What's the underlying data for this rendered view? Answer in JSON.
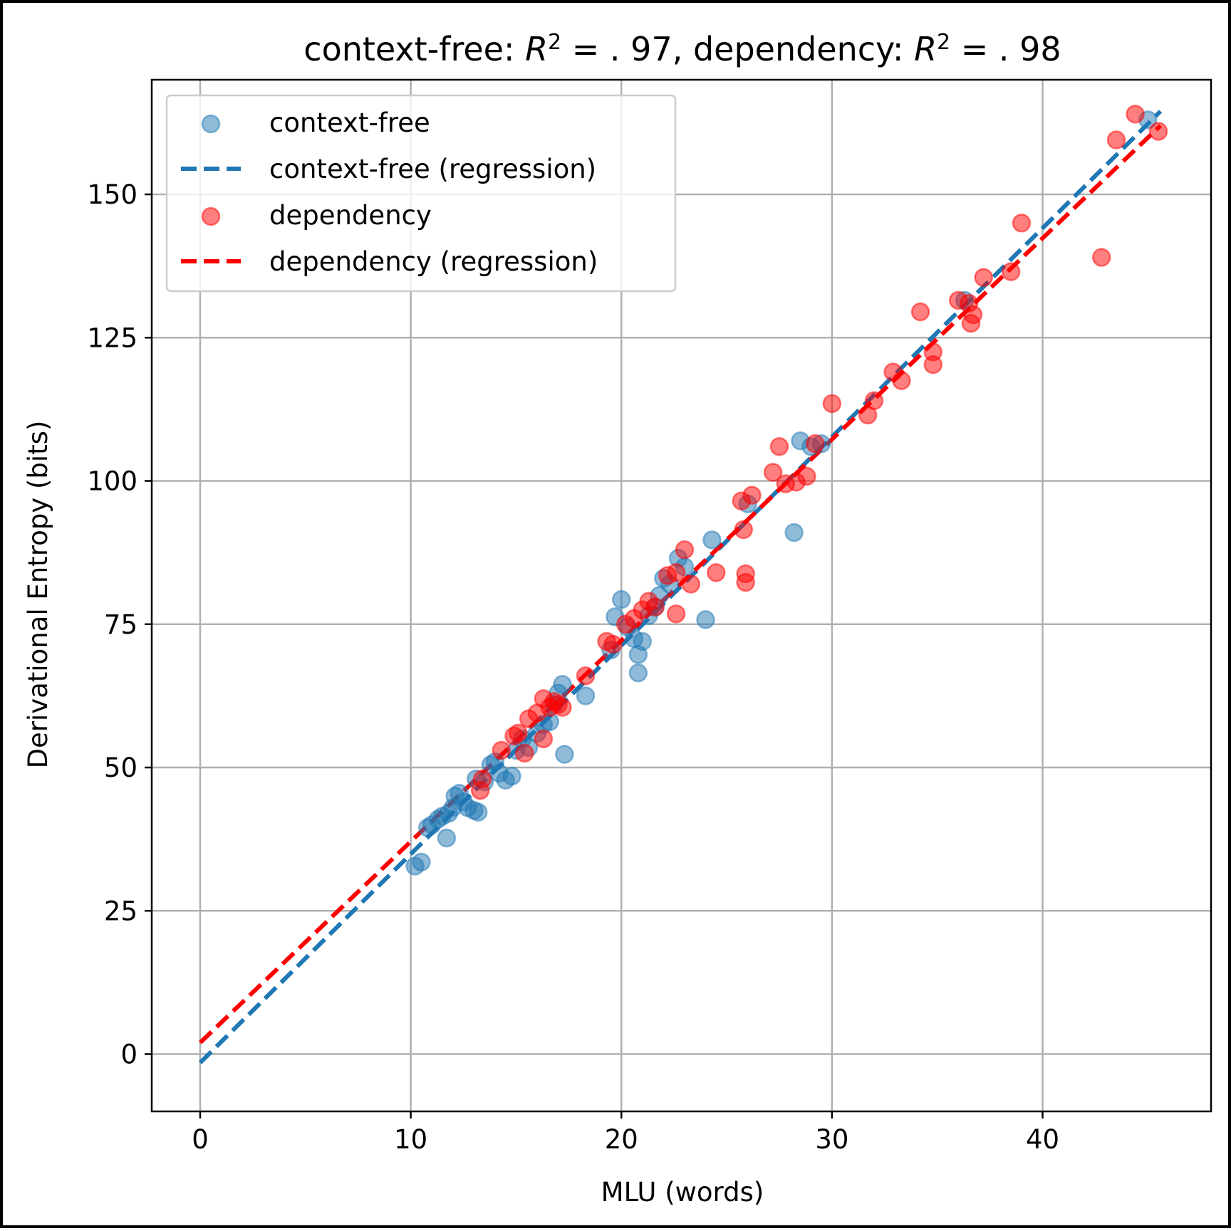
{
  "colors": {
    "context_free": "#1f77b4",
    "dependency": "#ff0000",
    "grid": "#b0b0b0",
    "frame": "#000000"
  },
  "chart_data": {
    "type": "scatter",
    "title": "context-free: R² = .97, dependency: R² = .98",
    "title_parts": {
      "cf_prefix": "context-free: ",
      "r": "R",
      "sup": "2",
      "cf_value": " = . 97, ",
      "dep_prefix": "dependency: ",
      "dep_value": " = . 98"
    },
    "xlabel": "MLU (words)",
    "ylabel": "Derivational Entropy (bits)",
    "xlim": [
      -2.3,
      48
    ],
    "ylim": [
      -10,
      170
    ],
    "xticks": [
      0,
      10,
      20,
      30,
      40
    ],
    "yticks": [
      0,
      25,
      50,
      75,
      100,
      125,
      150
    ],
    "grid": true,
    "legend": {
      "placement": "top-left",
      "entries": [
        {
          "label": "context-free",
          "kind": "marker",
          "series": "context_free"
        },
        {
          "label": "context-free (regression)",
          "kind": "dashed-line",
          "series": "context_free"
        },
        {
          "label": "dependency",
          "kind": "marker",
          "series": "dependency"
        },
        {
          "label": "dependency (regression)",
          "kind": "dashed-line",
          "series": "dependency"
        }
      ]
    },
    "series": [
      {
        "name": "context-free",
        "key": "context_free",
        "points": [
          [
            10.2,
            32.8
          ],
          [
            10.5,
            33.5
          ],
          [
            10.8,
            39.5
          ],
          [
            11.0,
            40.0
          ],
          [
            11.3,
            41.0
          ],
          [
            11.5,
            41.5
          ],
          [
            11.7,
            37.7
          ],
          [
            11.8,
            42.0
          ],
          [
            12.0,
            43.0
          ],
          [
            12.1,
            45.0
          ],
          [
            12.3,
            45.5
          ],
          [
            12.5,
            44.0
          ],
          [
            12.7,
            43.0
          ],
          [
            13.0,
            42.5
          ],
          [
            13.2,
            42.2
          ],
          [
            13.1,
            48.0
          ],
          [
            13.5,
            47.5
          ],
          [
            13.8,
            50.5
          ],
          [
            14.0,
            51.0
          ],
          [
            14.2,
            49.0
          ],
          [
            14.5,
            47.8
          ],
          [
            14.8,
            48.5
          ],
          [
            15.0,
            53.0
          ],
          [
            15.3,
            55.0
          ],
          [
            15.6,
            53.5
          ],
          [
            16.0,
            56.0
          ],
          [
            16.3,
            57.5
          ],
          [
            16.6,
            58.0
          ],
          [
            16.8,
            61.0
          ],
          [
            17.0,
            63.0
          ],
          [
            17.2,
            64.5
          ],
          [
            17.3,
            52.3
          ],
          [
            18.3,
            62.5
          ],
          [
            19.5,
            70.5
          ],
          [
            19.7,
            76.3
          ],
          [
            20.0,
            79.3
          ],
          [
            20.3,
            74.5
          ],
          [
            20.6,
            72.5
          ],
          [
            20.8,
            69.7
          ],
          [
            20.8,
            66.5
          ],
          [
            21.0,
            72.0
          ],
          [
            21.3,
            76.5
          ],
          [
            21.6,
            78.0
          ],
          [
            21.8,
            80.0
          ],
          [
            22.0,
            83.0
          ],
          [
            22.3,
            82.0
          ],
          [
            22.7,
            86.5
          ],
          [
            23.0,
            85.0
          ],
          [
            24.0,
            75.8
          ],
          [
            24.3,
            89.7
          ],
          [
            26.0,
            96.0
          ],
          [
            28.2,
            91.0
          ],
          [
            28.5,
            107.0
          ],
          [
            29.0,
            106.0
          ],
          [
            29.5,
            106.5
          ],
          [
            36.3,
            131.5
          ],
          [
            45.0,
            163.0
          ]
        ]
      },
      {
        "name": "dependency",
        "key": "dependency",
        "points": [
          [
            13.3,
            46.0
          ],
          [
            13.4,
            48.0
          ],
          [
            14.3,
            53.0
          ],
          [
            14.9,
            55.5
          ],
          [
            15.1,
            56.0
          ],
          [
            15.4,
            52.5
          ],
          [
            15.6,
            58.5
          ],
          [
            16.0,
            59.5
          ],
          [
            16.3,
            55.0
          ],
          [
            16.3,
            62.0
          ],
          [
            16.6,
            60.5
          ],
          [
            16.8,
            61.5
          ],
          [
            17.0,
            61.0
          ],
          [
            17.2,
            60.5
          ],
          [
            18.3,
            66.0
          ],
          [
            19.3,
            72.0
          ],
          [
            19.6,
            71.5
          ],
          [
            20.2,
            75.0
          ],
          [
            20.6,
            76.0
          ],
          [
            21.0,
            77.5
          ],
          [
            21.3,
            79.0
          ],
          [
            21.6,
            78.0
          ],
          [
            22.2,
            83.5
          ],
          [
            22.6,
            84.0
          ],
          [
            22.6,
            76.8
          ],
          [
            23.0,
            88.0
          ],
          [
            23.3,
            82.0
          ],
          [
            24.5,
            84.0
          ],
          [
            25.7,
            96.5
          ],
          [
            25.8,
            91.5
          ],
          [
            25.9,
            83.8
          ],
          [
            25.9,
            82.3
          ],
          [
            26.2,
            97.5
          ],
          [
            27.2,
            101.5
          ],
          [
            27.5,
            106.0
          ],
          [
            27.8,
            99.5
          ],
          [
            28.3,
            99.8
          ],
          [
            28.8,
            100.8
          ],
          [
            29.2,
            106.5
          ],
          [
            30.0,
            113.5
          ],
          [
            31.7,
            111.5
          ],
          [
            32.0,
            114.0
          ],
          [
            32.9,
            119.0
          ],
          [
            33.3,
            117.5
          ],
          [
            34.2,
            129.5
          ],
          [
            34.8,
            122.5
          ],
          [
            34.8,
            120.3
          ],
          [
            36.0,
            131.5
          ],
          [
            36.5,
            131.0
          ],
          [
            36.6,
            127.5
          ],
          [
            36.7,
            129.0
          ],
          [
            37.2,
            135.5
          ],
          [
            38.5,
            136.5
          ],
          [
            39.0,
            145.0
          ],
          [
            42.8,
            139.0
          ],
          [
            43.5,
            159.5
          ],
          [
            44.4,
            164.0
          ],
          [
            45.5,
            161.0
          ]
        ]
      }
    ],
    "regressions": [
      {
        "name": "context-free (regression)",
        "key": "context_free",
        "x": [
          0,
          45.6
        ],
        "y": [
          -1.5,
          164.5
        ]
      },
      {
        "name": "dependency (regression)",
        "key": "dependency",
        "x": [
          0,
          45.6
        ],
        "y": [
          2.0,
          162.0
        ]
      }
    ]
  }
}
